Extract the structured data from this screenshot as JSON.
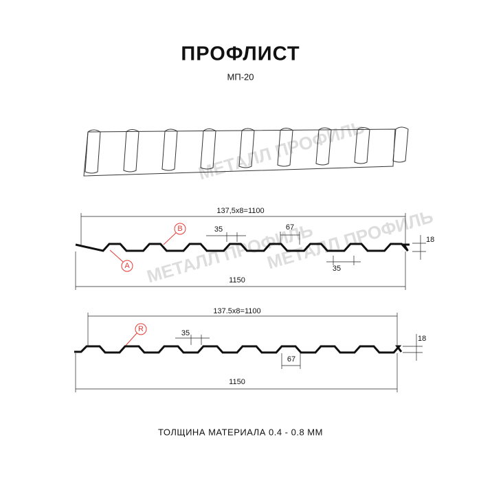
{
  "header": {
    "title": "ПРОФЛИСТ",
    "subtitle": "МП-20"
  },
  "watermarks": [
    "МЕТАЛЛ ПРОФИЛЬ",
    "МЕТАЛЛ ПРОФИЛЬ",
    "МЕТАЛЛ ПРОФИЛЬ"
  ],
  "profiles": [
    {
      "span": "137,5х8=1100",
      "rib_top": "35",
      "rib_bottom": "67",
      "height": "18",
      "width": "1150",
      "rib_bottom_2": "35",
      "markers": [
        "B",
        "A"
      ]
    },
    {
      "span": "137.5х8=1100",
      "rib_top": "35",
      "rib_bottom": "67",
      "height": "18",
      "width": "1150",
      "markers": [
        "R"
      ]
    }
  ],
  "footer": "ТОЛЩИНА МАТЕРИАЛА 0.4 - 0.8 ММ"
}
